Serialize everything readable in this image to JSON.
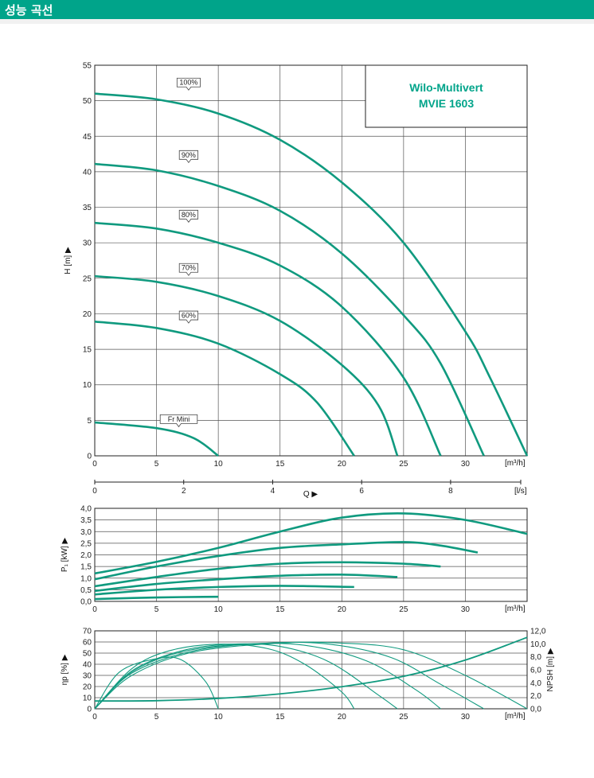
{
  "header": {
    "title": "성능 곡선"
  },
  "colors": {
    "accent": "#00a48a",
    "curve": "#109a7f",
    "grid": "#555555"
  },
  "chart_data": [
    {
      "id": "head",
      "type": "line",
      "title": "Wilo-Multivert\nMVIE 1603",
      "title_lines": [
        "Wilo-Multivert",
        "MVIE 1603"
      ],
      "xlabel": "[m³/h]",
      "ylabel": "H [m] ▶",
      "xlim": [
        0,
        35
      ],
      "ylim": [
        0,
        55
      ],
      "xticks": [
        0,
        5,
        10,
        15,
        20,
        25,
        30
      ],
      "yticks": [
        0,
        5,
        10,
        15,
        20,
        25,
        30,
        35,
        40,
        45,
        50,
        55
      ],
      "grid": true,
      "secondary_x": {
        "label": "Q ▶",
        "unit": "[l/s]",
        "ticks": [
          0,
          2,
          4,
          6,
          8
        ],
        "lim": [
          0,
          9.72
        ]
      },
      "series": [
        {
          "name": "100%",
          "label_x": 7.6,
          "label_y": 51.5,
          "points": [
            [
              0,
              51
            ],
            [
              5,
              50.2
            ],
            [
              10,
              48.2
            ],
            [
              15,
              44.5
            ],
            [
              20,
              38.5
            ],
            [
              25,
              30
            ],
            [
              30,
              17.5
            ],
            [
              32,
              11
            ],
            [
              35,
              0
            ]
          ]
        },
        {
          "name": "90%",
          "label_x": 7.6,
          "label_y": 41.3,
          "points": [
            [
              0,
              41.1
            ],
            [
              5,
              40.2
            ],
            [
              10,
              38
            ],
            [
              15,
              34.5
            ],
            [
              20,
              28.5
            ],
            [
              25,
              19.8
            ],
            [
              28,
              13
            ],
            [
              31.5,
              0
            ]
          ]
        },
        {
          "name": "80%",
          "label_x": 7.6,
          "label_y": 32.9,
          "points": [
            [
              0,
              32.8
            ],
            [
              5,
              32
            ],
            [
              10,
              30
            ],
            [
              15,
              26.8
            ],
            [
              20,
              21
            ],
            [
              25,
              11
            ],
            [
              28,
              0
            ]
          ]
        },
        {
          "name": "70%",
          "label_x": 7.6,
          "label_y": 25.4,
          "points": [
            [
              0,
              25.3
            ],
            [
              5,
              24.5
            ],
            [
              10,
              22.5
            ],
            [
              15,
              19
            ],
            [
              20,
              12.8
            ],
            [
              23,
              7
            ],
            [
              24.5,
              0
            ]
          ]
        },
        {
          "name": "60%",
          "label_x": 7.6,
          "label_y": 18.7,
          "points": [
            [
              0,
              18.9
            ],
            [
              5,
              18
            ],
            [
              10,
              15.8
            ],
            [
              15,
              11.5
            ],
            [
              18,
              7.5
            ],
            [
              21,
              0
            ]
          ]
        },
        {
          "name": "Fr Mini",
          "label_x": 6.8,
          "label_y": 4.1,
          "points": [
            [
              0,
              4.7
            ],
            [
              5,
              3.9
            ],
            [
              8,
              2.5
            ],
            [
              10,
              0
            ]
          ]
        }
      ]
    },
    {
      "id": "power",
      "type": "line",
      "xlabel": "[m³/h]",
      "ylabel": "P₁ [kW] ▶",
      "xlim": [
        0,
        35
      ],
      "ylim": [
        0,
        4
      ],
      "xticks": [
        0,
        5,
        10,
        15,
        20,
        25,
        30
      ],
      "yticks": [
        "0,0",
        "0,5",
        "1,0",
        "1,5",
        "2,0",
        "2,5",
        "3,0",
        "3,5",
        "4,0"
      ],
      "ytick_values": [
        0,
        0.5,
        1,
        1.5,
        2,
        2.5,
        3,
        3.5,
        4
      ],
      "grid": true,
      "series": [
        {
          "points": [
            [
              0,
              1.2
            ],
            [
              5,
              1.7
            ],
            [
              10,
              2.3
            ],
            [
              15,
              3
            ],
            [
              20,
              3.6
            ],
            [
              25,
              3.78
            ],
            [
              30,
              3.5
            ],
            [
              35,
              2.9
            ]
          ]
        },
        {
          "points": [
            [
              0,
              0.95
            ],
            [
              5,
              1.5
            ],
            [
              10,
              1.95
            ],
            [
              15,
              2.3
            ],
            [
              20,
              2.45
            ],
            [
              25,
              2.55
            ],
            [
              28,
              2.4
            ],
            [
              31,
              2.1
            ]
          ]
        },
        {
          "points": [
            [
              0,
              0.65
            ],
            [
              5,
              1.05
            ],
            [
              10,
              1.4
            ],
            [
              15,
              1.62
            ],
            [
              20,
              1.68
            ],
            [
              25,
              1.62
            ],
            [
              28,
              1.5
            ]
          ]
        },
        {
          "points": [
            [
              0,
              0.45
            ],
            [
              5,
              0.75
            ],
            [
              10,
              0.95
            ],
            [
              15,
              1.1
            ],
            [
              20,
              1.15
            ],
            [
              24.5,
              1.05
            ]
          ]
        },
        {
          "points": [
            [
              0,
              0.3
            ],
            [
              5,
              0.5
            ],
            [
              10,
              0.62
            ],
            [
              15,
              0.67
            ],
            [
              21,
              0.62
            ]
          ]
        },
        {
          "points": [
            [
              0,
              0.1
            ],
            [
              5,
              0.17
            ],
            [
              10,
              0.2
            ]
          ]
        }
      ]
    },
    {
      "id": "efficiency",
      "type": "line",
      "xlabel": "[m³/h]",
      "ylabel": "ηp [%] ▶",
      "y2label": "NPSH [m] ▶",
      "xlim": [
        0,
        35
      ],
      "ylim": [
        0,
        70
      ],
      "y2lim": [
        0,
        12
      ],
      "xticks": [
        0,
        5,
        10,
        15,
        20,
        25,
        30
      ],
      "yticks": [
        0,
        10,
        20,
        30,
        40,
        50,
        60,
        70
      ],
      "y2ticks": [
        "0,0",
        "2,0",
        "4,0",
        "6,0",
        "8,0",
        "10,0",
        "12,0"
      ],
      "y2tick_values": [
        0,
        2,
        4,
        6,
        8,
        10,
        12
      ],
      "grid": true,
      "series": [
        {
          "name": "eta-100",
          "points": [
            [
              0,
              0
            ],
            [
              3,
              30
            ],
            [
              8,
              51
            ],
            [
              15,
              59
            ],
            [
              20,
              59
            ],
            [
              25,
              53
            ],
            [
              30,
              30
            ],
            [
              35,
              0
            ]
          ]
        },
        {
          "name": "eta-90",
          "points": [
            [
              0,
              0
            ],
            [
              3,
              32
            ],
            [
              8,
              52
            ],
            [
              14,
              59
            ],
            [
              19,
              58
            ],
            [
              24,
              46
            ],
            [
              28,
              22
            ],
            [
              31.5,
              0
            ]
          ]
        },
        {
          "name": "eta-80",
          "points": [
            [
              0,
              0
            ],
            [
              3,
              33
            ],
            [
              7,
              51
            ],
            [
              12,
              58
            ],
            [
              17,
              57
            ],
            [
              22,
              43
            ],
            [
              26,
              17
            ],
            [
              28,
              0
            ]
          ]
        },
        {
          "name": "eta-70",
          "points": [
            [
              0,
              0
            ],
            [
              3,
              34
            ],
            [
              7,
              52
            ],
            [
              11,
              58
            ],
            [
              15,
              56
            ],
            [
              19,
              42
            ],
            [
              23,
              12
            ],
            [
              24.5,
              0
            ]
          ]
        },
        {
          "name": "eta-60",
          "points": [
            [
              0,
              0
            ],
            [
              3,
              36
            ],
            [
              6,
              52
            ],
            [
              10,
              58
            ],
            [
              14,
              54
            ],
            [
              17,
              40
            ],
            [
              20,
              15
            ],
            [
              21,
              0
            ]
          ]
        },
        {
          "name": "eta-min",
          "points": [
            [
              0,
              0
            ],
            [
              2,
              33
            ],
            [
              5,
              45
            ],
            [
              7,
              44
            ],
            [
              9,
              24
            ],
            [
              10,
              0
            ]
          ]
        },
        {
          "name": "npsh",
          "axis": "y2",
          "points": [
            [
              0,
              1.2
            ],
            [
              5,
              1.25
            ],
            [
              10,
              1.6
            ],
            [
              15,
              2.3
            ],
            [
              20,
              3.4
            ],
            [
              25,
              5
            ],
            [
              30,
              7.5
            ],
            [
              35,
              11
            ]
          ]
        }
      ]
    }
  ]
}
